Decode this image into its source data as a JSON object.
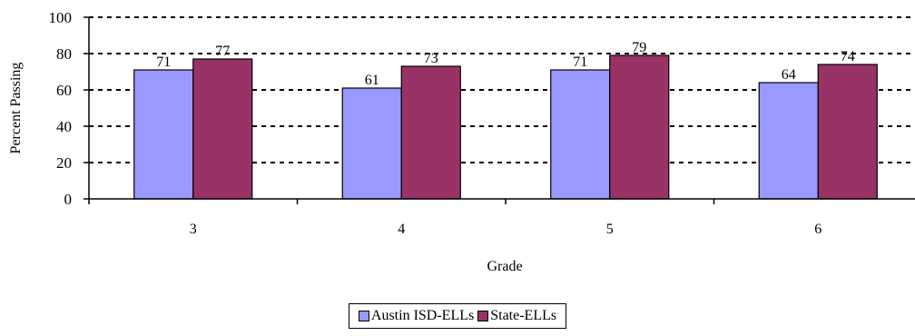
{
  "chart_data": {
    "type": "bar",
    "categories": [
      "3",
      "4",
      "5",
      "6"
    ],
    "series": [
      {
        "name": "Austin ISD-ELLs",
        "values": [
          71,
          61,
          71,
          64
        ],
        "color": "#9999ff"
      },
      {
        "name": "State-ELLs",
        "values": [
          77,
          73,
          79,
          74
        ],
        "color": "#993366"
      }
    ],
    "xlabel": "Grade",
    "ylabel": "Percent Passing",
    "ylim": [
      0,
      100
    ],
    "yticks": [
      0,
      20,
      40,
      60,
      80,
      100
    ],
    "grid": true,
    "grid_style": "dashed",
    "legend_position": "bottom"
  }
}
